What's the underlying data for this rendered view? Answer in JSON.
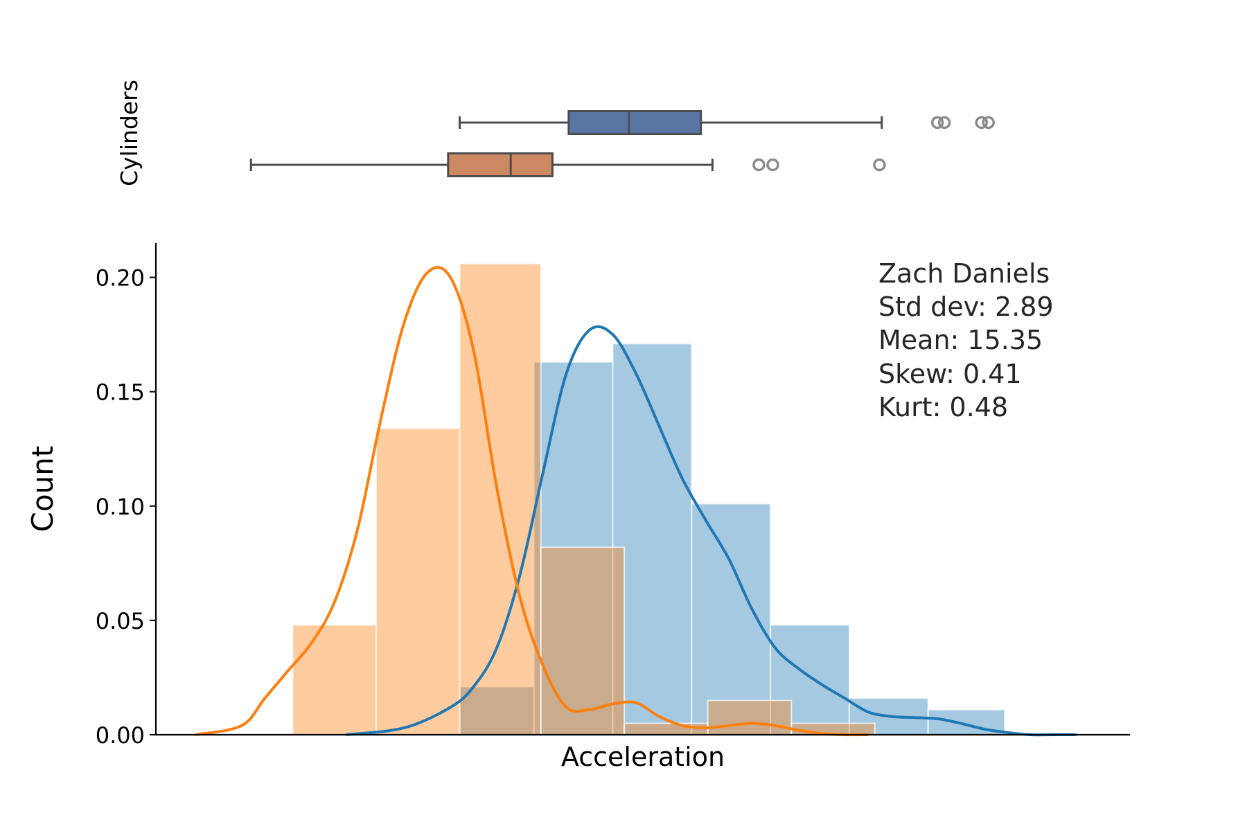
{
  "chart_data": {
    "type": "histogram",
    "xlabel": "Acceleration",
    "ylabel": "Count",
    "box_ylabel": "Cylinders",
    "xlim": [
      6.65,
      27.65
    ],
    "ylim": [
      0,
      0.215
    ],
    "yticks": [
      "0.00",
      "0.05",
      "0.10",
      "0.15",
      "0.20"
    ],
    "stats": {
      "name": "Zach Daniels",
      "std": "Std dev: 2.89",
      "mean": "Mean: 15.35",
      "skew": "Skew: 0.41",
      "kurt": "Kurt: 0.48"
    },
    "colors": {
      "blue": "#1f77b4",
      "orange": "#ff7f0e",
      "blue_box": "#5975a4",
      "orange_box": "#cc8963"
    },
    "series": [
      {
        "bin_edges": [
          13.2,
          14.8,
          16.5,
          18.2,
          19.9,
          21.6,
          23.3,
          24.95
        ],
        "density": [
          0.021,
          0.163,
          0.171,
          0.101,
          0.048,
          0.016,
          0.011
        ],
        "kde_x": [
          10.75,
          12.0,
          13.0,
          13.5,
          14.0,
          14.5,
          15.0,
          15.5,
          16.0,
          16.5,
          17.0,
          17.5,
          18.0,
          18.5,
          19.0,
          19.5,
          20.0,
          20.5,
          21.0,
          21.5,
          22.0,
          22.5,
          23.0,
          23.5,
          24.0,
          24.5,
          25.0,
          25.5,
          26.0,
          26.5
        ],
        "kde_y": [
          0.0,
          0.003,
          0.012,
          0.021,
          0.038,
          0.07,
          0.115,
          0.158,
          0.177,
          0.175,
          0.158,
          0.135,
          0.112,
          0.094,
          0.077,
          0.055,
          0.038,
          0.029,
          0.022,
          0.016,
          0.01,
          0.008,
          0.0075,
          0.007,
          0.005,
          0.0025,
          0.001,
          0.0,
          0.0,
          0.0
        ],
        "box": {
          "whislo": 13.2,
          "q1": 15.55,
          "med": 16.85,
          "q3": 18.4,
          "whishi": 22.3,
          "fliers": [
            23.5,
            23.65,
            24.45,
            24.6
          ]
        }
      },
      {
        "bin_edges": [
          9.6,
          11.4,
          13.2,
          14.95,
          16.75,
          18.55,
          20.35,
          22.15
        ],
        "density": [
          0.048,
          0.134,
          0.206,
          0.082,
          0.005,
          0.015,
          0.005
        ],
        "kde_x": [
          7.5,
          8.5,
          9.0,
          9.5,
          10.0,
          10.5,
          11.0,
          11.5,
          12.0,
          12.5,
          13.0,
          13.5,
          14.0,
          14.5,
          15.0,
          15.5,
          16.0,
          16.5,
          17.0,
          17.5,
          18.0,
          18.5,
          19.0,
          19.5,
          20.0,
          20.5,
          21.0,
          21.5,
          22.0
        ],
        "kde_y": [
          0.0,
          0.004,
          0.016,
          0.028,
          0.04,
          0.058,
          0.09,
          0.138,
          0.18,
          0.202,
          0.2,
          0.168,
          0.108,
          0.06,
          0.03,
          0.012,
          0.011,
          0.0135,
          0.014,
          0.008,
          0.004,
          0.003,
          0.004,
          0.005,
          0.004,
          0.002,
          0.0005,
          0.0,
          0.0
        ],
        "box": {
          "whislo": 8.7,
          "q1": 12.95,
          "med": 14.3,
          "q3": 15.2,
          "whishi": 18.65,
          "fliers": [
            19.65,
            19.95,
            22.25
          ]
        }
      }
    ]
  }
}
